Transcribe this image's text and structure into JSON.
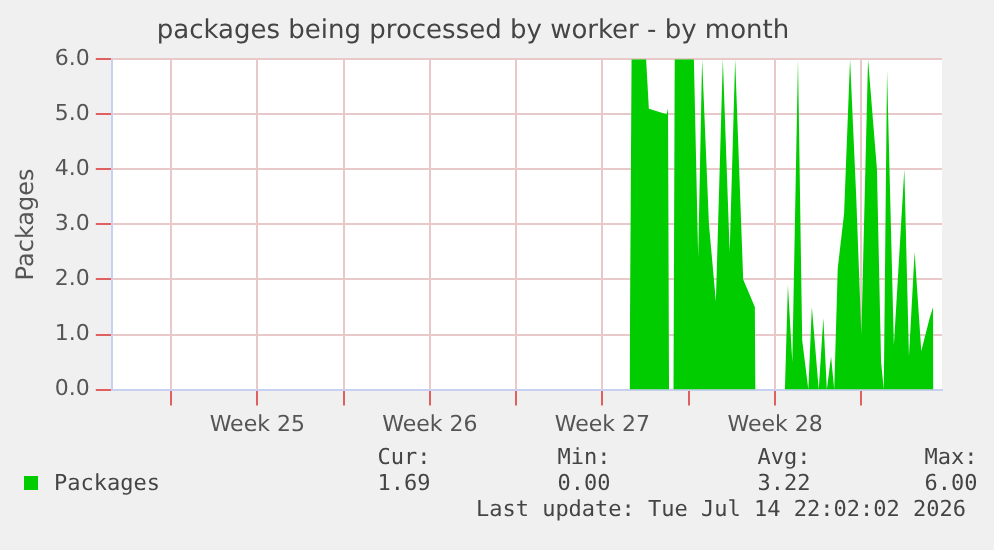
{
  "chart_data": {
    "type": "area",
    "title": "packages being processed by worker - by month",
    "ylabel": "Packages",
    "xlim": [
      "2026-06-12T14:24",
      "2026-07-16T06:30"
    ],
    "xticks": [
      {
        "value": "2026-06-15",
        "label": null
      },
      {
        "value": "2026-06-18T12:00",
        "label": "Week 25"
      },
      {
        "value": "2026-06-22",
        "label": null
      },
      {
        "value": "2026-06-25T12:00",
        "label": "Week 26"
      },
      {
        "value": "2026-06-29",
        "label": null
      },
      {
        "value": "2026-07-02T12:00",
        "label": "Week 27"
      },
      {
        "value": "2026-07-06",
        "label": null
      },
      {
        "value": "2026-07-09T12:00",
        "label": "Week 28"
      },
      {
        "value": "2026-07-13",
        "label": null
      }
    ],
    "ylim": [
      0,
      6
    ],
    "yticks": [
      {
        "value": 0,
        "label": "0.0"
      },
      {
        "value": 1,
        "label": "1.0"
      },
      {
        "value": 2,
        "label": "2.0"
      },
      {
        "value": 3,
        "label": "3.0"
      },
      {
        "value": 4,
        "label": "4.0"
      },
      {
        "value": 5,
        "label": "5.0"
      },
      {
        "value": 6,
        "label": "6.0"
      }
    ],
    "grid": true,
    "legend": "bottom",
    "series": [
      {
        "name": "Packages",
        "color": "#00cc00",
        "x": [
          "2026-07-03T14:24",
          "2026-07-03T16:20",
          "2026-07-04T06:30",
          "2026-07-04T09:10",
          "2026-07-05T02:24",
          "2026-07-05T03:50",
          "2026-07-05T04:48",
          "2026-07-05T09:10",
          "2026-07-05T10:20",
          "2026-07-06T05:00",
          "2026-07-06T09:10",
          "2026-07-06T13:00",
          "2026-07-06T19:40",
          "2026-07-07T02:24",
          "2026-07-07T09:10",
          "2026-07-07T15:50",
          "2026-07-07T21:10",
          "2026-07-08T05:00",
          "2026-07-08T16:20",
          "2026-07-08T16:50",
          "2026-07-09T21:36",
          "2026-07-10T00:30",
          "2026-07-10T04:48",
          "2026-07-10T10:20",
          "2026-07-10T14:24",
          "2026-07-10T20:24",
          "2026-07-10T23:50",
          "2026-07-11T06:30",
          "2026-07-11T11:00",
          "2026-07-11T14:24",
          "2026-07-11T18:30",
          "2026-07-11T21:36",
          "2026-07-12T01:00",
          "2026-07-12T07:12",
          "2026-07-12T13:00",
          "2026-07-12T19:00",
          "2026-07-13T00:00",
          "2026-07-13T06:30",
          "2026-07-13T15:10",
          "2026-07-13T19:12",
          "2026-07-13T21:50",
          "2026-07-14T01:00",
          "2026-07-14T07:40",
          "2026-07-14T17:50",
          "2026-07-14T22:20",
          "2026-07-15T03:50",
          "2026-07-15T10:20",
          "2026-07-15T18:30",
          "2026-07-15T21:50",
          "2026-07-15T22:10"
        ],
        "values": [
          0,
          6,
          6,
          5.1,
          5.0,
          5.1,
          0,
          0,
          6,
          6,
          2.4,
          6,
          3.0,
          1.6,
          6,
          2.5,
          6,
          2.0,
          1.5,
          0,
          0,
          1.9,
          0.5,
          6,
          0.9,
          0,
          1.5,
          0,
          1.3,
          0,
          0.6,
          0,
          2.2,
          3.2,
          6,
          3.5,
          1.0,
          6,
          4.0,
          0.5,
          0,
          5.8,
          0.8,
          4.0,
          0.6,
          2.5,
          0.7,
          1.3,
          1.5,
          0
        ]
      }
    ],
    "annotations": [
      "Cur:",
      "Min:",
      "Avg:",
      "Max:",
      "1.69",
      "0.00",
      "3.22",
      "6.00",
      "Last update: Tue Jul 14 22:02:02 2026"
    ]
  }
}
